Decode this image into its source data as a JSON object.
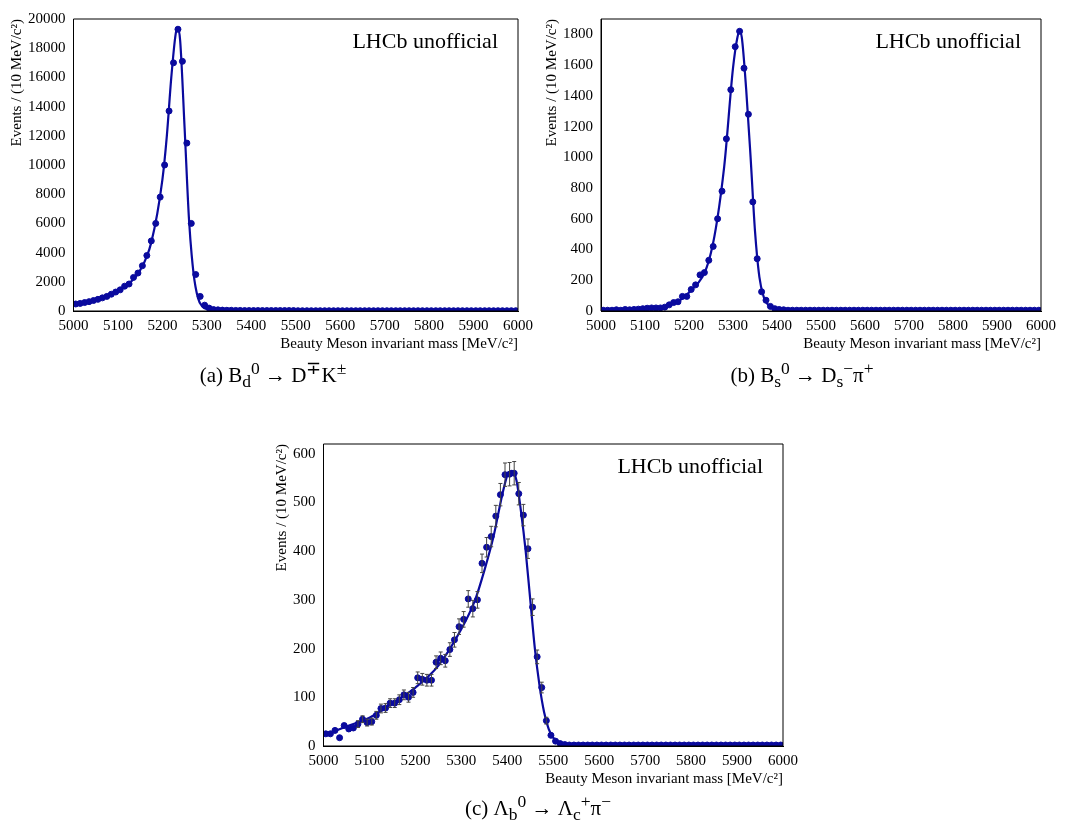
{
  "chart_data": [
    {
      "type": "scatter",
      "title": "(a) B$_{d}$$^{0}$ → D$^{∓}$K$^{±}$",
      "xlabel": "Beauty Meson invariant mass [MeV/c²]",
      "ylabel": "Events / (10 MeV/c²)",
      "annotations": [
        "LHCb unofficial"
      ],
      "xlim": [
        5000,
        6000
      ],
      "xticks": [
        5000,
        5100,
        5200,
        5300,
        5400,
        5500,
        5600,
        5700,
        5800,
        5900,
        6000
      ],
      "ylim": [
        0,
        20000
      ],
      "yticks": [
        0,
        2000,
        4000,
        6000,
        8000,
        10000,
        12000,
        14000,
        16000,
        18000,
        20000
      ],
      "grid": false,
      "legend": false,
      "line_style": "solid",
      "series": [
        {
          "type": "scatter",
          "marker": "circle",
          "color": "#0a0a9e",
          "x": [
            5005,
            5015,
            5025,
            5035,
            5045,
            5055,
            5065,
            5075,
            5085,
            5095,
            5105,
            5115,
            5125,
            5135,
            5145,
            5155,
            5165,
            5175,
            5185,
            5195,
            5205,
            5215,
            5225,
            5235,
            5245,
            5255,
            5265,
            5275,
            5285,
            5295,
            5305,
            5315,
            5325,
            5335,
            5345,
            5355,
            5365,
            5375,
            5385,
            5395,
            5405,
            5415,
            5425,
            5435,
            5445,
            5455,
            5465,
            5475,
            5485,
            5495,
            5505,
            5515,
            5525,
            5535,
            5545,
            5555,
            5565,
            5575,
            5585,
            5595,
            5605,
            5615,
            5625,
            5635,
            5645,
            5655,
            5665,
            5675,
            5685,
            5695,
            5705,
            5715,
            5725,
            5735,
            5745,
            5755,
            5765,
            5775,
            5785,
            5795,
            5805,
            5815,
            5825,
            5835,
            5845,
            5855,
            5865,
            5875,
            5885,
            5895,
            5905,
            5915,
            5925,
            5935,
            5945,
            5955,
            5965,
            5975,
            5985,
            5995
          ],
          "values": [
            480,
            520,
            580,
            640,
            720,
            800,
            900,
            1000,
            1150,
            1300,
            1450,
            1700,
            1850,
            2300,
            2600,
            3100,
            3800,
            4800,
            6000,
            7800,
            10000,
            13700,
            17000,
            19300,
            17100,
            11500,
            6000,
            2500,
            1000,
            400,
            200,
            100,
            80,
            60,
            50,
            50,
            40,
            40,
            30,
            30,
            30,
            30,
            30,
            30,
            30,
            30,
            30,
            30,
            30,
            30,
            20,
            20,
            20,
            20,
            20,
            20,
            20,
            20,
            20,
            20,
            20,
            20,
            20,
            20,
            20,
            20,
            20,
            20,
            20,
            20,
            20,
            20,
            20,
            20,
            20,
            20,
            20,
            20,
            20,
            20,
            20,
            20,
            20,
            20,
            20,
            20,
            20,
            20,
            20,
            20,
            20,
            20,
            20,
            20,
            20,
            20,
            20,
            20,
            20,
            20
          ]
        },
        {
          "type": "line",
          "color": "#0a0a9e",
          "x": [
            5000,
            5050,
            5100,
            5150,
            5175,
            5200,
            5210,
            5220,
            5230,
            5235,
            5240,
            5250,
            5260,
            5270,
            5280,
            5290,
            5300,
            5350,
            5400,
            6000
          ],
          "values": [
            450,
            760,
            1400,
            2800,
            4700,
            9000,
            12000,
            16000,
            19000,
            19400,
            18500,
            12500,
            6200,
            2600,
            900,
            300,
            120,
            50,
            30,
            20
          ]
        }
      ]
    },
    {
      "type": "scatter",
      "title": "(b) B$_{s}$$^{0}$ → D$_{s}$$^{−}$π$^{+}$",
      "xlabel": "Beauty Meson invariant mass [MeV/c²]",
      "ylabel": "Events / (10 MeV/c²)",
      "annotations": [
        "LHCb unofficial"
      ],
      "xlim": [
        5000,
        6000
      ],
      "xticks": [
        5000,
        5100,
        5200,
        5300,
        5400,
        5500,
        5600,
        5700,
        5800,
        5900,
        6000
      ],
      "ylim": [
        0,
        1900
      ],
      "yticks": [
        0,
        200,
        400,
        600,
        800,
        1000,
        1200,
        1400,
        1600,
        1800
      ],
      "grid": false,
      "legend": false,
      "line_style": "solid",
      "series": [
        {
          "type": "scatter",
          "marker": "circle",
          "color": "#0a0a9e",
          "x": [
            5005,
            5015,
            5025,
            5035,
            5045,
            5055,
            5065,
            5075,
            5085,
            5095,
            5105,
            5115,
            5125,
            5135,
            5145,
            5155,
            5165,
            5175,
            5185,
            5195,
            5205,
            5215,
            5225,
            5235,
            5245,
            5255,
            5265,
            5275,
            5285,
            5295,
            5305,
            5315,
            5325,
            5335,
            5345,
            5355,
            5365,
            5375,
            5385,
            5395,
            5405,
            5415,
            5425,
            5435,
            5445,
            5455,
            5465,
            5475,
            5485,
            5495,
            5505,
            5515,
            5525,
            5535,
            5545,
            5555,
            5565,
            5575,
            5585,
            5595,
            5605,
            5615,
            5625,
            5635,
            5645,
            5655,
            5665,
            5675,
            5685,
            5695,
            5705,
            5715,
            5725,
            5735,
            5745,
            5755,
            5765,
            5775,
            5785,
            5795,
            5805,
            5815,
            5825,
            5835,
            5845,
            5855,
            5865,
            5875,
            5885,
            5895,
            5905,
            5915,
            5925,
            5935,
            5945,
            5955,
            5965,
            5975,
            5985,
            5995
          ],
          "values": [
            5,
            5,
            5,
            8,
            5,
            10,
            8,
            10,
            12,
            15,
            18,
            20,
            20,
            20,
            25,
            40,
            55,
            60,
            95,
            95,
            140,
            170,
            235,
            250,
            330,
            420,
            600,
            780,
            1120,
            1440,
            1720,
            1820,
            1580,
            1280,
            710,
            340,
            125,
            70,
            30,
            15,
            10,
            8,
            5,
            5,
            5,
            5,
            5,
            5,
            5,
            5,
            5,
            5,
            5,
            5,
            5,
            5,
            5,
            5,
            5,
            5,
            5,
            5,
            5,
            5,
            5,
            5,
            5,
            5,
            5,
            5,
            5,
            5,
            5,
            5,
            5,
            5,
            5,
            5,
            5,
            5,
            5,
            5,
            5,
            5,
            5,
            5,
            5,
            5,
            5,
            5,
            5,
            5,
            5,
            5,
            5,
            5,
            5,
            5,
            5,
            5
          ]
        },
        {
          "type": "line",
          "color": "#0a0a9e",
          "x": [
            5000,
            5100,
            5150,
            5200,
            5250,
            5280,
            5300,
            5310,
            5315,
            5320,
            5330,
            5340,
            5350,
            5360,
            5370,
            5380,
            5400,
            6000
          ],
          "values": [
            5,
            15,
            35,
            120,
            380,
            940,
            1580,
            1780,
            1820,
            1780,
            1440,
            1000,
            520,
            220,
            90,
            40,
            10,
            3
          ]
        }
      ]
    },
    {
      "type": "scatter",
      "title": "(c) Λ$_{b}$$^{0}$ → Λ$_{c}$$^{+}$π$^{−}$",
      "xlabel": "Beauty Meson invariant mass [MeV/c²]",
      "ylabel": "Events / (10 MeV/c²)",
      "annotations": [
        "LHCb unofficial"
      ],
      "xlim": [
        5000,
        6000
      ],
      "xticks": [
        5000,
        5100,
        5200,
        5300,
        5400,
        5500,
        5600,
        5700,
        5800,
        5900,
        6000
      ],
      "ylim": [
        0,
        620
      ],
      "yticks": [
        0,
        100,
        200,
        300,
        400,
        500,
        600
      ],
      "grid": false,
      "legend": false,
      "line_style": "solid",
      "series": [
        {
          "type": "scatter",
          "marker": "circle",
          "color": "#0a0a9e",
          "x": [
            5005,
            5015,
            5025,
            5035,
            5045,
            5055,
            5065,
            5075,
            5085,
            5095,
            5105,
            5115,
            5125,
            5135,
            5145,
            5155,
            5165,
            5175,
            5185,
            5195,
            5205,
            5215,
            5225,
            5235,
            5245,
            5255,
            5265,
            5275,
            5285,
            5295,
            5305,
            5315,
            5325,
            5335,
            5345,
            5355,
            5365,
            5375,
            5385,
            5395,
            5405,
            5415,
            5425,
            5435,
            5445,
            5455,
            5465,
            5475,
            5485,
            5495,
            5505,
            5515,
            5525,
            5535,
            5545,
            5555,
            5565,
            5575,
            5585,
            5595,
            5605,
            5615,
            5625,
            5635,
            5645,
            5655,
            5665,
            5675,
            5685,
            5695,
            5705,
            5715,
            5725,
            5735,
            5745,
            5755,
            5765,
            5775,
            5785,
            5795,
            5805,
            5815,
            5825,
            5835,
            5845,
            5855,
            5865,
            5875,
            5885,
            5895,
            5905,
            5915,
            5925,
            5935,
            5945,
            5955,
            5965,
            5975,
            5985,
            5995
          ],
          "values": [
            25,
            25,
            32,
            17,
            42,
            35,
            37,
            45,
            55,
            48,
            50,
            63,
            77,
            78,
            88,
            88,
            95,
            105,
            100,
            110,
            140,
            137,
            135,
            135,
            172,
            180,
            175,
            198,
            218,
            245,
            260,
            302,
            282,
            300,
            375,
            408,
            430,
            472,
            516,
            557,
            558,
            560,
            518,
            474,
            405,
            285,
            183,
            120,
            52,
            22,
            10,
            5,
            3,
            2,
            2,
            2,
            2,
            2,
            2,
            2,
            2,
            2,
            2,
            2,
            2,
            2,
            2,
            2,
            2,
            2,
            2,
            2,
            2,
            2,
            2,
            2,
            2,
            2,
            2,
            2,
            2,
            2,
            2,
            2,
            2,
            2,
            2,
            2,
            2,
            2,
            2,
            2,
            2,
            2,
            2,
            2,
            2,
            2,
            2,
            2
          ],
          "errors": [
            null,
            null,
            null,
            null,
            null,
            null,
            null,
            7,
            7,
            7,
            7,
            8,
            9,
            9,
            9,
            9,
            10,
            10,
            10,
            10,
            12,
            12,
            12,
            12,
            13,
            13,
            13,
            14,
            15,
            16,
            16,
            17,
            17,
            17,
            19,
            20,
            21,
            22,
            23,
            24,
            24,
            24,
            23,
            22,
            20,
            17,
            14,
            11,
            7,
            null,
            null,
            null,
            null,
            null,
            null,
            null,
            null,
            null,
            null,
            null,
            null,
            null,
            null,
            null,
            null,
            null,
            null,
            null,
            null,
            null,
            null,
            null,
            null,
            null,
            null,
            null,
            null,
            null,
            null,
            null,
            null,
            null,
            null,
            null,
            null,
            null,
            null,
            null,
            null,
            null,
            null,
            null,
            null,
            null,
            null,
            null,
            null,
            null,
            null,
            null
          ]
        },
        {
          "type": "line",
          "color": "#0a0a9e",
          "x": [
            5000,
            5050,
            5100,
            5150,
            5200,
            5250,
            5300,
            5330,
            5350,
            5370,
            5390,
            5400,
            5410,
            5420,
            5430,
            5440,
            5450,
            5460,
            5470,
            5480,
            5490,
            5500,
            5520,
            5550,
            6000
          ],
          "values": [
            22,
            40,
            58,
            88,
            120,
            165,
            240,
            300,
            360,
            430,
            520,
            555,
            565,
            545,
            480,
            400,
            300,
            200,
            125,
            70,
            35,
            17,
            5,
            1,
            0
          ]
        }
      ]
    }
  ]
}
